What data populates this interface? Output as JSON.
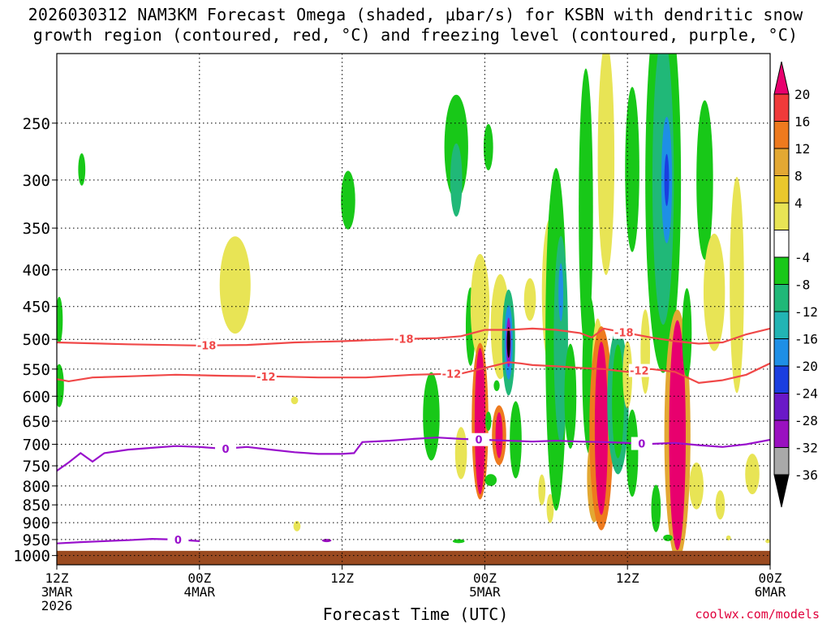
{
  "title_line1": "2026030312 NAM3KM Forecast Omega (shaded, μbar/s) for KSBN with dendritic snow",
  "title_line2": "growth region (contoured, red, °C) and freezing level (contoured, purple, °C)",
  "credit": "coolwx.com/models",
  "chart_data": {
    "type": "heatmap",
    "title": "2026030312 NAM3KM Forecast Omega (shaded, μbar/s) for KSBN with dendritic snow growth region (contoured, red, °C) and freezing level (contoured, purple, °C)",
    "xlabel": "Forecast Time (UTC)",
    "ylabel": "",
    "x_range_hours": [
      0,
      60
    ],
    "x_ticks": [
      {
        "hour": 0,
        "lines": [
          "12Z",
          "3MAR",
          "2026"
        ]
      },
      {
        "hour": 12,
        "lines": [
          "00Z",
          "4MAR"
        ]
      },
      {
        "hour": 24,
        "lines": [
          "12Z"
        ]
      },
      {
        "hour": 36,
        "lines": [
          "00Z",
          "5MAR"
        ]
      },
      {
        "hour": 48,
        "lines": [
          "12Z"
        ]
      },
      {
        "hour": 60,
        "lines": [
          "00Z",
          "6MAR"
        ]
      }
    ],
    "y_ticks": [
      250,
      300,
      350,
      400,
      450,
      500,
      550,
      600,
      650,
      700,
      750,
      800,
      850,
      900,
      950,
      1000
    ],
    "y_range_hpa": [
      200,
      1030
    ],
    "y_inverted": true,
    "grid": "dotted",
    "colorbar": {
      "ticks": [
        "20",
        "16",
        "12",
        "8",
        "4",
        "-4",
        "-8",
        "-12",
        "-16",
        "-20",
        "-24",
        "-28",
        "-32",
        "-36"
      ],
      "colors": [
        "#e8006e",
        "#f03a3a",
        "#ee7a1e",
        "#e3a833",
        "#eac82c",
        "#e8e455",
        "#ffffff",
        "#18c818",
        "#20b878",
        "#22b4b4",
        "#1e8fe6",
        "#1a3ee0",
        "#6a18c8",
        "#9a10c0",
        "#a9a9a9",
        "#000000"
      ]
    },
    "contours": [
      {
        "label": "-18",
        "color": "#f04848",
        "points": [
          [
            0,
            505
          ],
          [
            6,
            508
          ],
          [
            12,
            510
          ],
          [
            16,
            509
          ],
          [
            20,
            505
          ],
          [
            24,
            503
          ],
          [
            28,
            500
          ],
          [
            32,
            498
          ],
          [
            34,
            495
          ],
          [
            36,
            485
          ],
          [
            38,
            485
          ],
          [
            40,
            483
          ],
          [
            42,
            485
          ],
          [
            44,
            490
          ],
          [
            45,
            497
          ],
          [
            46,
            483
          ],
          [
            48,
            490
          ],
          [
            50,
            497
          ],
          [
            52,
            503
          ],
          [
            54,
            507
          ],
          [
            56,
            505
          ],
          [
            58,
            492
          ],
          [
            60,
            483
          ]
        ],
        "label_hours": [
          12.6,
          29.2,
          47.7
        ]
      },
      {
        "label": "-12",
        "color": "#f04848",
        "points": [
          [
            0,
            568
          ],
          [
            1,
            572
          ],
          [
            3,
            565
          ],
          [
            6,
            563
          ],
          [
            10,
            560
          ],
          [
            14,
            562
          ],
          [
            18,
            563
          ],
          [
            22,
            565
          ],
          [
            26,
            565
          ],
          [
            30,
            560
          ],
          [
            34,
            558
          ],
          [
            36,
            548
          ],
          [
            38,
            538
          ],
          [
            39,
            540
          ],
          [
            40,
            543
          ],
          [
            42,
            545
          ],
          [
            44,
            548
          ],
          [
            46,
            550
          ],
          [
            48,
            555
          ],
          [
            50,
            550
          ],
          [
            52,
            555
          ],
          [
            54,
            575
          ],
          [
            56,
            570
          ],
          [
            58,
            560
          ],
          [
            60,
            540
          ]
        ],
        "label_hours": [
          17.6,
          33.2,
          49.0
        ]
      },
      {
        "label": "0",
        "color": "#9910cc",
        "points": [
          [
            0,
            762
          ],
          [
            1,
            742
          ],
          [
            2,
            720
          ],
          [
            3,
            740
          ],
          [
            4,
            720
          ],
          [
            6,
            712
          ],
          [
            8,
            708
          ],
          [
            10,
            704
          ],
          [
            12,
            706
          ],
          [
            14,
            710
          ],
          [
            16,
            706
          ],
          [
            18,
            712
          ],
          [
            20,
            718
          ],
          [
            22,
            722
          ],
          [
            24,
            722
          ],
          [
            25,
            720
          ],
          [
            25.7,
            695
          ],
          [
            28,
            692
          ],
          [
            30,
            688
          ],
          [
            32,
            685
          ],
          [
            34,
            688
          ],
          [
            36,
            690
          ],
          [
            38,
            692
          ],
          [
            40,
            694
          ],
          [
            42,
            692
          ],
          [
            44,
            694
          ],
          [
            46,
            695
          ],
          [
            48,
            697
          ],
          [
            50,
            699
          ],
          [
            52,
            697
          ],
          [
            54,
            702
          ],
          [
            56,
            706
          ],
          [
            58,
            700
          ],
          [
            60,
            690
          ]
        ],
        "label_hours": [
          14.2,
          35.5,
          49.2
        ]
      },
      {
        "label": "0",
        "color": "#9910cc",
        "points": [
          [
            0,
            962
          ],
          [
            2,
            958
          ],
          [
            4,
            955
          ],
          [
            6,
            952
          ],
          [
            8,
            948
          ],
          [
            10,
            950
          ],
          [
            12,
            955
          ]
        ],
        "label_hours": [
          10.2
        ]
      }
    ],
    "terrain_top_hpa": 985,
    "omega_cells": [
      {
        "t": 0.2,
        "p": 470,
        "w": 0.3,
        "h": 70,
        "v": -6
      },
      {
        "t": 0.2,
        "p": 580,
        "w": 0.4,
        "h": 80,
        "v": -6
      },
      {
        "t": 2.1,
        "p": 290,
        "w": 0.3,
        "h": 30,
        "v": -6
      },
      {
        "t": 15.0,
        "p": 420,
        "w": 1.3,
        "h": 130,
        "v": 4
      },
      {
        "t": 20.2,
        "p": 910,
        "w": 0.3,
        "h": 30,
        "v": 4
      },
      {
        "t": 24.5,
        "p": 320,
        "w": 0.6,
        "h": 60,
        "v": -6
      },
      {
        "t": 20.0,
        "p": 608,
        "w": 0.3,
        "h": 15,
        "v": 4
      },
      {
        "t": 31.5,
        "p": 640,
        "w": 0.7,
        "h": 180,
        "v": -6
      },
      {
        "t": 34.0,
        "p": 720,
        "w": 0.5,
        "h": 120,
        "v": 4
      },
      {
        "t": 33.6,
        "p": 270,
        "w": 1.0,
        "h": 90,
        "v": -6
      },
      {
        "t": 33.6,
        "p": 300,
        "w": 0.5,
        "h": 70,
        "v": -10
      },
      {
        "t": 34.8,
        "p": 480,
        "w": 0.4,
        "h": 120,
        "v": -6
      },
      {
        "t": 35.6,
        "p": 450,
        "w": 0.8,
        "h": 150,
        "v": 6
      },
      {
        "t": 35.6,
        "p": 650,
        "w": 0.7,
        "h": 320,
        "v": 12
      },
      {
        "t": 35.6,
        "p": 650,
        "w": 0.45,
        "h": 300,
        "v": 22
      },
      {
        "t": 36.3,
        "p": 270,
        "w": 0.4,
        "h": 40,
        "v": -6
      },
      {
        "t": 36.3,
        "p": 650,
        "w": 0.25,
        "h": 40,
        "v": -6
      },
      {
        "t": 36.5,
        "p": 785,
        "w": 0.5,
        "h": 30,
        "v": -6
      },
      {
        "t": 37.3,
        "p": 480,
        "w": 0.8,
        "h": 160,
        "v": 6
      },
      {
        "t": 38.0,
        "p": 505,
        "w": 0.55,
        "h": 170,
        "v": -10
      },
      {
        "t": 38.0,
        "p": 505,
        "w": 0.35,
        "h": 120,
        "v": -18
      },
      {
        "t": 38.0,
        "p": 505,
        "w": 0.2,
        "h": 80,
        "v": -30
      },
      {
        "t": 38.0,
        "p": 505,
        "w": 0.1,
        "h": 50,
        "v": -38
      },
      {
        "t": 37.2,
        "p": 680,
        "w": 0.6,
        "h": 130,
        "v": 12
      },
      {
        "t": 37.2,
        "p": 680,
        "w": 0.3,
        "h": 100,
        "v": 22
      },
      {
        "t": 37.0,
        "p": 580,
        "w": 0.25,
        "h": 20,
        "v": -6
      },
      {
        "t": 38.6,
        "p": 690,
        "w": 0.5,
        "h": 170,
        "v": -6
      },
      {
        "t": 39.8,
        "p": 440,
        "w": 0.5,
        "h": 60,
        "v": 6
      },
      {
        "t": 40.8,
        "p": 810,
        "w": 0.3,
        "h": 80,
        "v": 4
      },
      {
        "t": 41.5,
        "p": 860,
        "w": 0.3,
        "h": 80,
        "v": 4
      },
      {
        "t": 41.5,
        "p": 430,
        "w": 0.7,
        "h": 200,
        "v": 4
      },
      {
        "t": 42.0,
        "p": 500,
        "w": 0.9,
        "h": 500,
        "v": -6
      },
      {
        "t": 42.4,
        "p": 500,
        "w": 0.6,
        "h": 320,
        "v": -10
      },
      {
        "t": 42.4,
        "p": 430,
        "w": 0.2,
        "h": 80,
        "v": -18
      },
      {
        "t": 43.2,
        "p": 600,
        "w": 0.5,
        "h": 200,
        "v": -6
      },
      {
        "t": 44.5,
        "p": 330,
        "w": 0.6,
        "h": 280,
        "v": -6
      },
      {
        "t": 44.8,
        "p": 560,
        "w": 0.6,
        "h": 280,
        "v": -6
      },
      {
        "t": 45.2,
        "p": 780,
        "w": 0.6,
        "h": 220,
        "v": 8
      },
      {
        "t": 45.5,
        "p": 560,
        "w": 0.5,
        "h": 200,
        "v": 4
      },
      {
        "t": 45.8,
        "p": 665,
        "w": 1.0,
        "h": 420,
        "v": 12
      },
      {
        "t": 45.8,
        "p": 665,
        "w": 0.55,
        "h": 360,
        "v": 22
      },
      {
        "t": 46.2,
        "p": 280,
        "w": 0.7,
        "h": 200,
        "v": 4
      },
      {
        "t": 47.2,
        "p": 610,
        "w": 0.9,
        "h": 280,
        "v": -10
      },
      {
        "t": 47.2,
        "p": 610,
        "w": 0.5,
        "h": 220,
        "v": -6
      },
      {
        "t": 48.0,
        "p": 560,
        "w": 0.4,
        "h": 120,
        "v": 4
      },
      {
        "t": 48.4,
        "p": 290,
        "w": 0.6,
        "h": 150,
        "v": -6
      },
      {
        "t": 48.4,
        "p": 720,
        "w": 0.5,
        "h": 200,
        "v": -6
      },
      {
        "t": 49.5,
        "p": 520,
        "w": 0.4,
        "h": 140,
        "v": 4
      },
      {
        "t": 50.4,
        "p": 860,
        "w": 0.4,
        "h": 130,
        "v": -6
      },
      {
        "t": 51.0,
        "p": 300,
        "w": 1.5,
        "h": 330,
        "v": -6
      },
      {
        "t": 51.0,
        "p": 300,
        "w": 0.9,
        "h": 260,
        "v": -10
      },
      {
        "t": 51.3,
        "p": 300,
        "w": 0.45,
        "h": 120,
        "v": -18
      },
      {
        "t": 51.3,
        "p": 300,
        "w": 0.2,
        "h": 50,
        "v": -22
      },
      {
        "t": 52.2,
        "p": 680,
        "w": 1.1,
        "h": 520,
        "v": 10
      },
      {
        "t": 52.2,
        "p": 680,
        "w": 0.7,
        "h": 480,
        "v": 22
      },
      {
        "t": 53.0,
        "p": 490,
        "w": 0.4,
        "h": 140,
        "v": -6
      },
      {
        "t": 54.5,
        "p": 300,
        "w": 0.7,
        "h": 150,
        "v": -6
      },
      {
        "t": 55.3,
        "p": 430,
        "w": 0.9,
        "h": 160,
        "v": 4
      },
      {
        "t": 57.2,
        "p": 420,
        "w": 0.6,
        "h": 280,
        "v": 4
      },
      {
        "t": 58.5,
        "p": 770,
        "w": 0.6,
        "h": 100,
        "v": 4
      },
      {
        "t": 53.8,
        "p": 800,
        "w": 0.6,
        "h": 120,
        "v": 4
      },
      {
        "t": 55.8,
        "p": 850,
        "w": 0.4,
        "h": 80,
        "v": 4
      },
      {
        "t": 33.8,
        "p": 955,
        "w": 0.5,
        "h": 12,
        "v": -6
      },
      {
        "t": 22.7,
        "p": 953,
        "w": 0.4,
        "h": 8,
        "v": -30
      },
      {
        "t": 51.4,
        "p": 945,
        "w": 0.4,
        "h": 20,
        "v": -6
      },
      {
        "t": 56.5,
        "p": 945,
        "w": 0.2,
        "h": 15,
        "v": 4
      },
      {
        "t": 59.8,
        "p": 955,
        "w": 0.2,
        "h": 12,
        "v": 4
      }
    ]
  }
}
